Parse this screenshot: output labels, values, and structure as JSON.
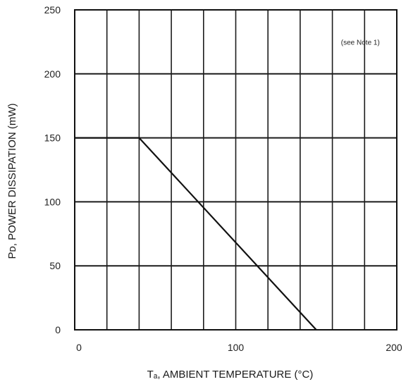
{
  "chart_data": {
    "type": "line",
    "xlabel": "Tₐ, AMBIENT TEMPERATURE (°C)",
    "ylabel": "Pᴅ, POWER DISSIPATION (mW)",
    "annotation": "(see Note 1)",
    "xlim": [
      0,
      200
    ],
    "ylim": [
      0,
      250
    ],
    "x_ticks": [
      0,
      100,
      200
    ],
    "x_tick_labels": [
      "0",
      "100",
      "200"
    ],
    "y_ticks": [
      0,
      50,
      100,
      150,
      200,
      250
    ],
    "y_tick_labels": [
      "0",
      "50",
      "100",
      "150",
      "200",
      "250"
    ],
    "x_minor_step": 20,
    "grid": true,
    "series": [
      {
        "x": [
          0,
          40,
          150
        ],
        "y": [
          150,
          150,
          0
        ]
      }
    ]
  }
}
